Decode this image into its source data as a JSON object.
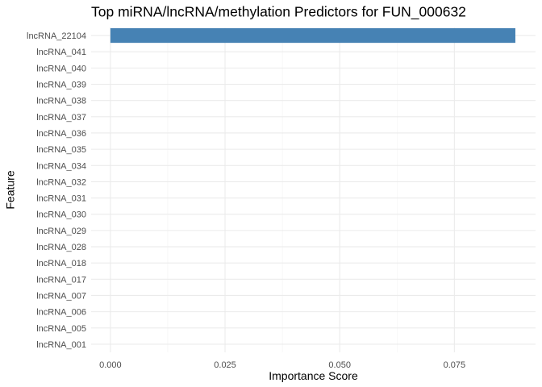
{
  "chart_data": {
    "type": "bar",
    "orientation": "horizontal",
    "title": "Top miRNA/lncRNA/methylation Predictors for FUN_000632",
    "xlabel": "Importance Score",
    "ylabel": "Feature",
    "categories": [
      "lncRNA_22104",
      "lncRNA_041",
      "lncRNA_040",
      "lncRNA_039",
      "lncRNA_038",
      "lncRNA_037",
      "lncRNA_036",
      "lncRNA_035",
      "lncRNA_034",
      "lncRNA_032",
      "lncRNA_031",
      "lncRNA_030",
      "lncRNA_029",
      "lncRNA_028",
      "lncRNA_018",
      "lncRNA_017",
      "lncRNA_007",
      "lncRNA_006",
      "lncRNA_005",
      "lncRNA_001"
    ],
    "values": [
      0.0883,
      0,
      0,
      0,
      0,
      0,
      0,
      0,
      0,
      0,
      0,
      0,
      0,
      0,
      0,
      0,
      0,
      0,
      0,
      0
    ],
    "xlim": [
      -0.0042,
      0.0927
    ],
    "xticks": [
      0.0,
      0.025,
      0.05,
      0.075
    ],
    "xtick_labels": [
      "0.000",
      "0.025",
      "0.050",
      "0.075"
    ],
    "bar_color": "#4682B4",
    "grid": true,
    "legend": "none"
  }
}
